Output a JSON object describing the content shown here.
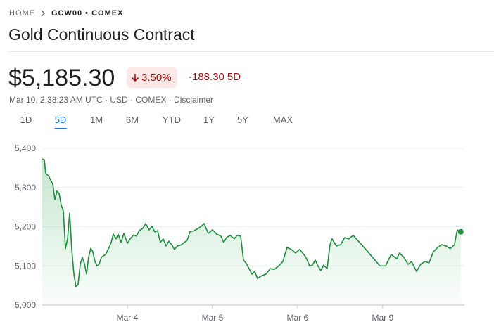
{
  "breadcrumb": [
    "HOME",
    "GCW00 • COMEX"
  ],
  "title": "Gold Continuous Contract",
  "price": "$5,185.30",
  "change_percent": "3.50%",
  "change": "-188.30",
  "change_period": "5D",
  "meta": "Mar 10, 2:38:23 AM UTC · USD · COMEX · Disclaimer",
  "tabs": [
    "1D",
    "5D",
    "1M",
    "6M",
    "YTD",
    "1Y",
    "5Y",
    "MAX"
  ],
  "active_tab": 1,
  "chart_data": {
    "type": "line",
    "color": "#1e8e3e",
    "grid": true,
    "xlim": [
      0,
      4.96
    ],
    "xticks": [
      {
        "value": 1,
        "label": "Mar 4"
      },
      {
        "value": 2,
        "label": "Mar 5"
      },
      {
        "value": 3,
        "label": "Mar 6"
      },
      {
        "value": 4,
        "label": "Mar 9"
      }
    ],
    "ylim": [
      5000,
      5400
    ],
    "yticks": [
      {
        "value": 5000,
        "label": "5,000"
      },
      {
        "value": 5100,
        "label": "5,100"
      },
      {
        "value": 5200,
        "label": "5,200"
      },
      {
        "value": 5300,
        "label": "5,300"
      },
      {
        "value": 5400,
        "label": "5,400"
      }
    ],
    "x": [
      0,
      0.025,
      0.041,
      0.074,
      0.099,
      0.124,
      0.149,
      0.174,
      0.198,
      0.223,
      0.248,
      0.273,
      0.298,
      0.322,
      0.347,
      0.372,
      0.397,
      0.421,
      0.446,
      0.471,
      0.496,
      0.521,
      0.545,
      0.57,
      0.595,
      0.62,
      0.645,
      0.669,
      0.694,
      0.744,
      0.785,
      0.81,
      0.835,
      0.868,
      0.893,
      0.926,
      0.959,
      1,
      1.033,
      1.074,
      1.107,
      1.14,
      1.182,
      1.215,
      1.256,
      1.289,
      1.322,
      1.355,
      1.388,
      1.421,
      1.455,
      1.488,
      1.521,
      1.554,
      1.587,
      1.636,
      1.669,
      1.702,
      1.736,
      1.785,
      1.835,
      1.868,
      1.901,
      1.95,
      2,
      2.05,
      2.099,
      2.132,
      2.165,
      2.207,
      2.256,
      2.289,
      2.331,
      2.364,
      2.397,
      2.43,
      2.463,
      2.496,
      2.529,
      2.579,
      2.628,
      2.678,
      2.727,
      2.777,
      2.826,
      2.876,
      2.926,
      2.975,
      3.025,
      3.074,
      3.107,
      3.14,
      3.174,
      3.207,
      3.24,
      3.273,
      3.306,
      3.347,
      3.38,
      3.405,
      3.455,
      3.504,
      3.554,
      3.603,
      3.653,
      3.802,
      3.967,
      4.033,
      4.099,
      4.132,
      4.165,
      4.198,
      4.248,
      4.298,
      4.339,
      4.397,
      4.446,
      4.496,
      4.545,
      4.595,
      4.645,
      4.694,
      4.744,
      4.793,
      4.843,
      4.876,
      4.917
    ],
    "values": [
      5373,
      5371,
      5335,
      5330,
      5319,
      5309,
      5269,
      5291,
      5285,
      5255,
      5240,
      5144,
      5169,
      5235,
      5142,
      5079,
      5047,
      5052,
      5104,
      5122,
      5106,
      5079,
      5122,
      5145,
      5136,
      5111,
      5100,
      5104,
      5122,
      5129,
      5147,
      5160,
      5181,
      5169,
      5181,
      5160,
      5183,
      5158,
      5169,
      5179,
      5176,
      5190,
      5196,
      5208,
      5192,
      5201,
      5187,
      5190,
      5160,
      5169,
      5151,
      5163,
      5154,
      5142,
      5151,
      5154,
      5160,
      5165,
      5187,
      5190,
      5196,
      5201,
      5208,
      5183,
      5192,
      5181,
      5176,
      5160,
      5172,
      5178,
      5169,
      5178,
      5176,
      5115,
      5106,
      5093,
      5079,
      5086,
      5068,
      5075,
      5079,
      5093,
      5091,
      5100,
      5111,
      5147,
      5142,
      5133,
      5142,
      5129,
      5118,
      5100,
      5102,
      5115,
      5100,
      5088,
      5102,
      5093,
      5154,
      5169,
      5151,
      5154,
      5172,
      5169,
      5178,
      5142,
      5100,
      5100,
      5129,
      5124,
      5118,
      5133,
      5122,
      5104,
      5111,
      5086,
      5104,
      5111,
      5108,
      5136,
      5147,
      5154,
      5151,
      5144,
      5154,
      5192,
      5187
    ]
  }
}
